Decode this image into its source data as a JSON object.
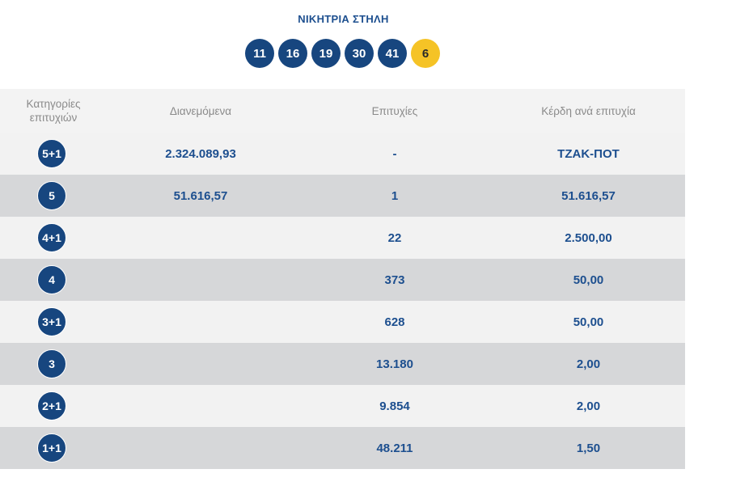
{
  "winning_column": {
    "title": "ΝΙΚΗΤΡΙΑ ΣΤΗΛΗ",
    "numbers": [
      "11",
      "16",
      "19",
      "30",
      "41"
    ],
    "bonus": "6"
  },
  "table": {
    "headers": {
      "category": "Κατηγορίες επιτυχιών",
      "distributed": "Διανεμόμενα",
      "winners": "Επιτυχίες",
      "prize": "Κέρδη ανά επιτυχία"
    },
    "rows": [
      {
        "category": "5+1",
        "distributed": "2.324.089,93",
        "winners": "-",
        "prize": "ΤΖΑΚ-ΠΟΤ"
      },
      {
        "category": "5",
        "distributed": "51.616,57",
        "winners": "1",
        "prize": "51.616,57"
      },
      {
        "category": "4+1",
        "distributed": "",
        "winners": "22",
        "prize": "2.500,00"
      },
      {
        "category": "4",
        "distributed": "",
        "winners": "373",
        "prize": "50,00"
      },
      {
        "category": "3+1",
        "distributed": "",
        "winners": "628",
        "prize": "50,00"
      },
      {
        "category": "3",
        "distributed": "",
        "winners": "13.180",
        "prize": "2,00"
      },
      {
        "category": "2+1",
        "distributed": "",
        "winners": "9.854",
        "prize": "2,00"
      },
      {
        "category": "1+1",
        "distributed": "",
        "winners": "48.211",
        "prize": "1,50"
      }
    ]
  },
  "colors": {
    "primary_blue": "#17467f",
    "text_blue": "#1d4f8f",
    "bonus_yellow": "#f5c326",
    "row_light": "#f2f2f2",
    "row_dark": "#d6d7d9"
  }
}
